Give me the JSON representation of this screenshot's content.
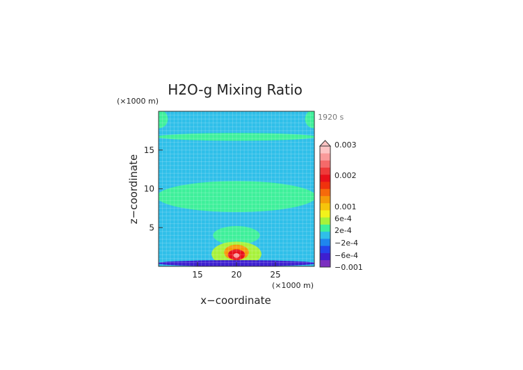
{
  "chart_data": {
    "type": "heatmap",
    "title": "H2O-g Mixing Ratio",
    "time_label": "1920 s",
    "xlabel": "x−coordinate",
    "ylabel": "z−coordinate",
    "x_unit": "(×1000 m)",
    "y_unit": "(×1000 m)",
    "xlim": [
      10,
      30
    ],
    "ylim": [
      0,
      20
    ],
    "x_ticks": [
      "15",
      "20",
      "25"
    ],
    "y_ticks": [
      "5",
      "10",
      "15"
    ],
    "colorbar": {
      "labels": [
        "0.003",
        "0.002",
        "0.001",
        "6e-4",
        "2e-4",
        "−2e-4",
        "−6e-4",
        "−0.001"
      ],
      "colors": [
        "#7b2fbf",
        "#3e1fd0",
        "#2444ec",
        "#1f86ee",
        "#2fbfe9",
        "#3ef09a",
        "#a7f23a",
        "#f3f21b",
        "#f6c40b",
        "#f59a09",
        "#f56a0b",
        "#f0320d",
        "#e8101a",
        "#ee3a3a",
        "#f56a6a",
        "#f99a9a",
        "#fcc4c4"
      ]
    },
    "background_level": 4,
    "features": [
      {
        "kind": "band",
        "x0": 10,
        "x1": 30,
        "z": 16.7,
        "half_width": 0.5,
        "level": 5
      },
      {
        "kind": "band",
        "x0": 10,
        "x1": 30,
        "z": 9.0,
        "half_width": 2.0,
        "level": 5
      },
      {
        "kind": "blob",
        "x": 20,
        "z": 4.0,
        "rx": 3.0,
        "rz": 1.2,
        "level": 5
      },
      {
        "kind": "blob",
        "x": 20,
        "z": 1.6,
        "rx": 3.2,
        "rz": 1.6,
        "level": 6
      },
      {
        "kind": "blob",
        "x": 20,
        "z": 1.8,
        "rx": 1.6,
        "rz": 1.0,
        "level": 9
      },
      {
        "kind": "blob",
        "x": 20,
        "z": 1.5,
        "rx": 1.1,
        "rz": 0.7,
        "level": 12
      },
      {
        "kind": "blob",
        "x": 20,
        "z": 1.4,
        "rx": 0.4,
        "rz": 0.3,
        "level": 15
      },
      {
        "kind": "blob",
        "x": 10,
        "z": 19,
        "rx": 1.2,
        "rz": 1.2,
        "level": 5
      },
      {
        "kind": "blob",
        "x": 30,
        "z": 19,
        "rx": 1.2,
        "rz": 1.2,
        "level": 5
      },
      {
        "kind": "band",
        "x0": 10,
        "x1": 30,
        "z": 0.4,
        "half_width": 0.4,
        "level": 1
      }
    ]
  }
}
